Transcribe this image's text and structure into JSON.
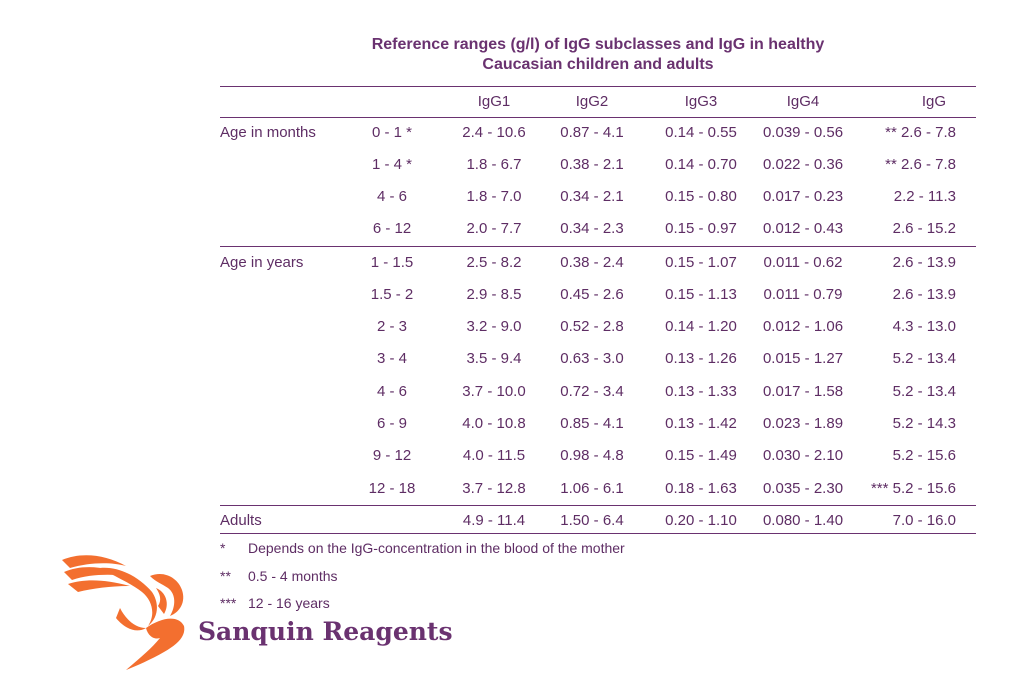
{
  "title_line1": "Reference ranges (g/l) of IgG subclasses and IgG in healthy",
  "title_line2": "Caucasian children and adults",
  "headers": [
    "IgG1",
    "IgG2",
    "IgG3",
    "IgG4",
    "IgG"
  ],
  "groups": {
    "months": "Age in months",
    "years": "Age in years",
    "adults": "Adults"
  },
  "rows": [
    {
      "age": "0 - 1 *",
      "v": [
        "2.4 - 10.6",
        "0.87 - 4.1",
        "0.14 - 0.55",
        "0.039 - 0.56",
        "** 2.6 - 7.8"
      ]
    },
    {
      "age": "1 - 4 *",
      "v": [
        "1.8 - 6.7",
        "0.38 - 2.1",
        "0.14 - 0.70",
        "0.022 - 0.36",
        "** 2.6 - 7.8"
      ]
    },
    {
      "age": "4 - 6",
      "v": [
        "1.8 - 7.0",
        "0.34 - 2.1",
        "0.15 - 0.80",
        "0.017 - 0.23",
        "2.2 - 11.3"
      ]
    },
    {
      "age": "6 - 12",
      "v": [
        "2.0 - 7.7",
        "0.34 - 2.3",
        "0.15 - 0.97",
        "0.012 - 0.43",
        "2.6 - 15.2"
      ]
    },
    {
      "age": "1 - 1.5",
      "v": [
        "2.5 - 8.2",
        "0.38 - 2.4",
        "0.15 - 1.07",
        "0.011 - 0.62",
        "2.6 - 13.9"
      ]
    },
    {
      "age": "1.5 - 2",
      "v": [
        "2.9 - 8.5",
        "0.45 - 2.6",
        "0.15 - 1.13",
        "0.011 - 0.79",
        "2.6 - 13.9"
      ]
    },
    {
      "age": "2 - 3",
      "v": [
        "3.2 - 9.0",
        "0.52 - 2.8",
        "0.14 - 1.20",
        "0.012 - 1.06",
        "4.3 - 13.0"
      ]
    },
    {
      "age": "3 - 4",
      "v": [
        "3.5 - 9.4",
        "0.63 - 3.0",
        "0.13 - 1.26",
        "0.015 - 1.27",
        "5.2 - 13.4"
      ]
    },
    {
      "age": "4 - 6",
      "v": [
        "3.7 - 10.0",
        "0.72 - 3.4",
        "0.13 - 1.33",
        "0.017 - 1.58",
        "5.2 - 13.4"
      ]
    },
    {
      "age": "6 - 9",
      "v": [
        "4.0 - 10.8",
        "0.85 - 4.1",
        "0.13 - 1.42",
        "0.023 - 1.89",
        "5.2 - 14.3"
      ]
    },
    {
      "age": "9 - 12",
      "v": [
        "4.0 - 11.5",
        "0.98 - 4.8",
        "0.15 - 1.49",
        "0.030 - 2.10",
        "5.2 - 15.6"
      ]
    },
    {
      "age": "12 - 18",
      "v": [
        "3.7 - 12.8",
        "1.06 - 6.1",
        "0.18 - 1.63",
        "0.035 - 2.30",
        "*** 5.2 - 15.6"
      ]
    }
  ],
  "adults_row": {
    "v": [
      "4.9 - 11.4",
      "1.50 - 6.4",
      "0.20 - 1.10",
      "0.080 - 1.40",
      "7.0 - 16.0"
    ]
  },
  "footnotes": [
    {
      "mark": "*",
      "text": "Depends on the IgG-concentration in the blood of the mother"
    },
    {
      "mark": "**",
      "text": "0.5 - 4 months"
    },
    {
      "mark": "***",
      "text": "12 - 16 years"
    }
  ],
  "brand": "Sanquin Reagents",
  "colors": {
    "text": "#5e2d64",
    "logo": "#f36f2f"
  }
}
